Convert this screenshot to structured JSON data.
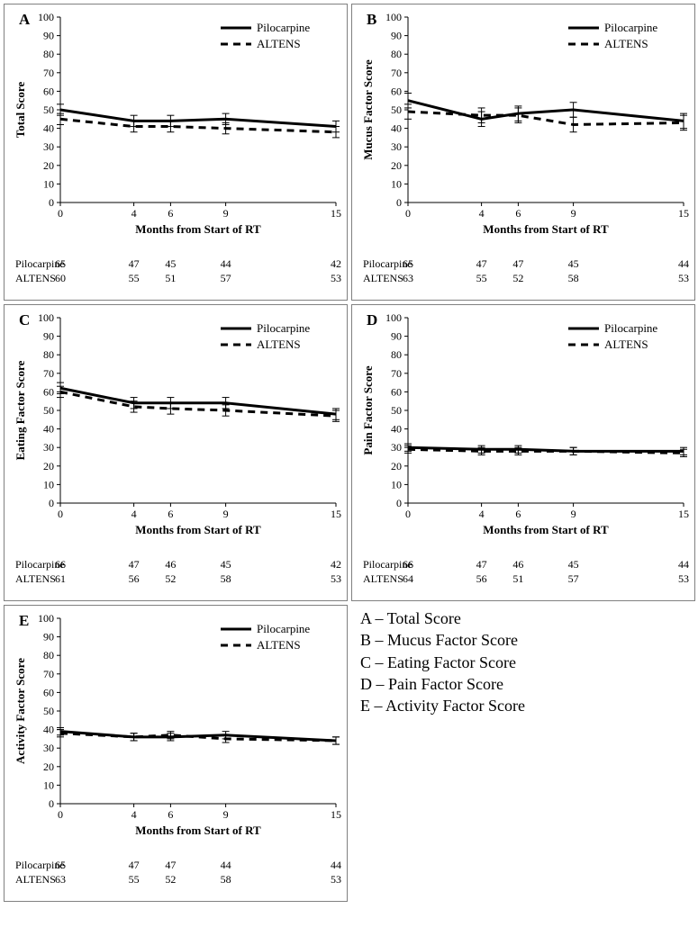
{
  "xlabel": "Months from Start of RT",
  "x_values": [
    0,
    4,
    6,
    9,
    15
  ],
  "ylim": [
    0,
    100
  ],
  "ytick_step": 10,
  "series_names": {
    "pilo": "Pilocarpine",
    "altens": "ALTENS"
  },
  "line_color": "#000000",
  "pilo_width": 3,
  "altens_width": 3,
  "altens_dash": "8 6",
  "panels": {
    "A": {
      "ylabel": "Total Score",
      "pilo_y": [
        50,
        44,
        44,
        45,
        41
      ],
      "altens_y": [
        45,
        41,
        41,
        40,
        38
      ],
      "pilo_err": [
        3,
        3,
        3,
        3,
        3
      ],
      "altens_err": [
        3,
        3,
        3,
        3,
        3
      ],
      "pilo_n": [
        65,
        47,
        45,
        44,
        42
      ],
      "altens_n": [
        60,
        55,
        51,
        57,
        53
      ]
    },
    "B": {
      "ylabel": "Mucus Factor Score",
      "pilo_y": [
        55,
        45,
        48,
        50,
        44
      ],
      "altens_y": [
        49,
        47,
        47,
        42,
        43
      ],
      "pilo_err": [
        4,
        4,
        4,
        4,
        4
      ],
      "altens_err": [
        4,
        4,
        4,
        4,
        4
      ],
      "pilo_n": [
        65,
        47,
        47,
        45,
        44
      ],
      "altens_n": [
        63,
        55,
        52,
        58,
        53
      ]
    },
    "C": {
      "ylabel": "Eating Factor Score",
      "pilo_y": [
        62,
        54,
        54,
        54,
        48
      ],
      "altens_y": [
        60,
        52,
        51,
        50,
        47
      ],
      "pilo_err": [
        3,
        3,
        3,
        3,
        3
      ],
      "altens_err": [
        3,
        3,
        3,
        3,
        3
      ],
      "pilo_n": [
        66,
        47,
        46,
        45,
        42
      ],
      "altens_n": [
        61,
        56,
        52,
        58,
        53
      ]
    },
    "D": {
      "ylabel": "Pain Factor Score",
      "pilo_y": [
        30,
        29,
        29,
        28,
        28
      ],
      "altens_y": [
        29,
        28,
        28,
        28,
        27
      ],
      "pilo_err": [
        2,
        2,
        2,
        2,
        2
      ],
      "altens_err": [
        2,
        2,
        2,
        2,
        2
      ],
      "pilo_n": [
        66,
        47,
        46,
        45,
        44
      ],
      "altens_n": [
        64,
        56,
        51,
        57,
        53
      ]
    },
    "E": {
      "ylabel": "Activity Factor Score",
      "pilo_y": [
        39,
        36,
        36,
        37,
        34
      ],
      "altens_y": [
        38,
        36,
        37,
        35,
        34
      ],
      "pilo_err": [
        2,
        2,
        2,
        2,
        2
      ],
      "altens_err": [
        2,
        2,
        2,
        2,
        2
      ],
      "pilo_n": [
        65,
        47,
        47,
        44,
        44
      ],
      "altens_n": [
        63,
        55,
        52,
        58,
        53
      ]
    }
  },
  "key_lines": [
    "A – Total Score",
    "B – Mucus Factor Score",
    "C – Eating Factor Score",
    "D – Pain Factor Score",
    "E – Activity Factor Score"
  ]
}
